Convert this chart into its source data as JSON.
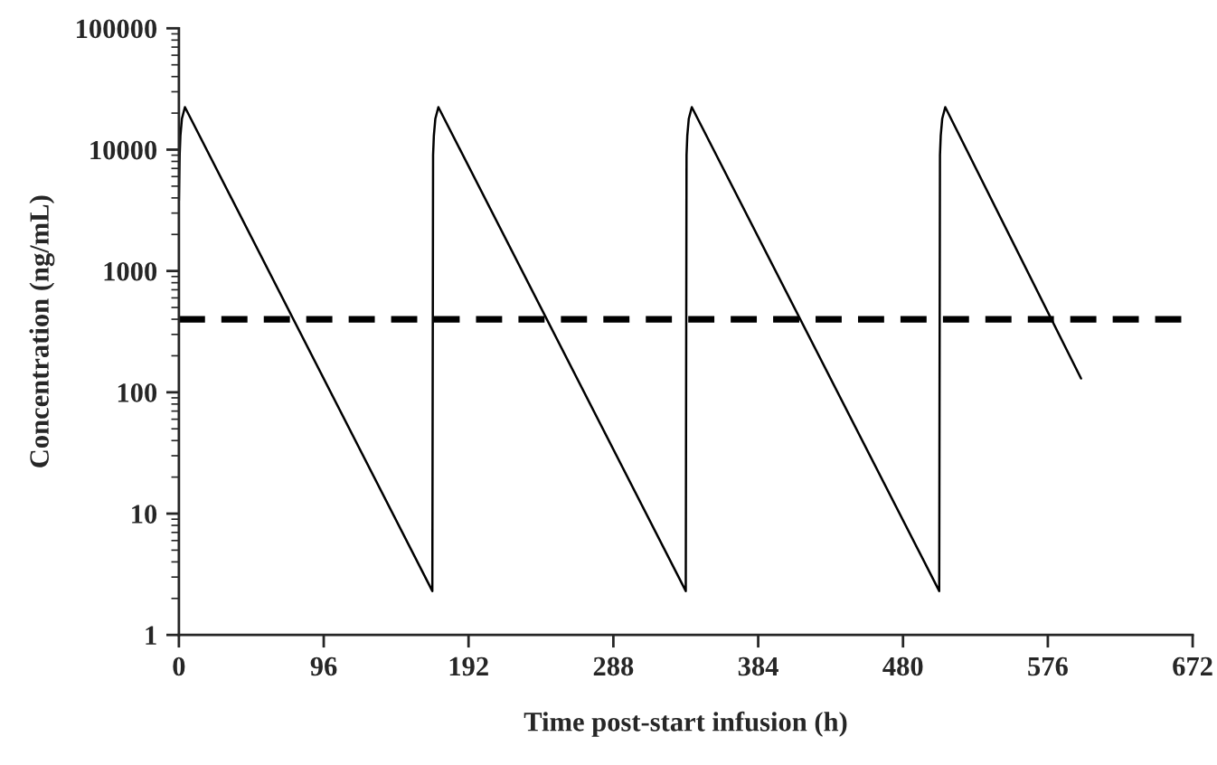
{
  "chart_data": {
    "type": "line",
    "xlabel": "Time post-start infusion (h)",
    "ylabel": "Concentration (ng/mL)",
    "log": "y",
    "series": [
      {
        "color": "#000000",
        "x": [
          0,
          0.5,
          1,
          2,
          4,
          168,
          168.5,
          169,
          170,
          172,
          336,
          336.5,
          337,
          338,
          340,
          504,
          504.5,
          505,
          506,
          508,
          598
        ],
        "values": [
          3800,
          9000,
          13000,
          18000,
          22400,
          2.3,
          9000,
          13000,
          18000,
          22400,
          2.3,
          9000,
          13000,
          18000,
          22400,
          2.3,
          9000,
          13000,
          18000,
          22400,
          130
        ]
      }
    ],
    "xlim": [
      0,
      672
    ],
    "xticks": [
      0,
      96,
      192,
      288,
      384,
      480,
      576,
      672
    ],
    "ylim": [
      1,
      100000
    ],
    "yticks": [
      1,
      10,
      100,
      1000,
      10000,
      100000
    ],
    "ref_lines": [
      {
        "axis": "y",
        "value": 400,
        "color": "#000000",
        "line_style": "dashed"
      }
    ],
    "grid": false,
    "legend": false,
    "marker": "none",
    "line_style": "solid"
  }
}
